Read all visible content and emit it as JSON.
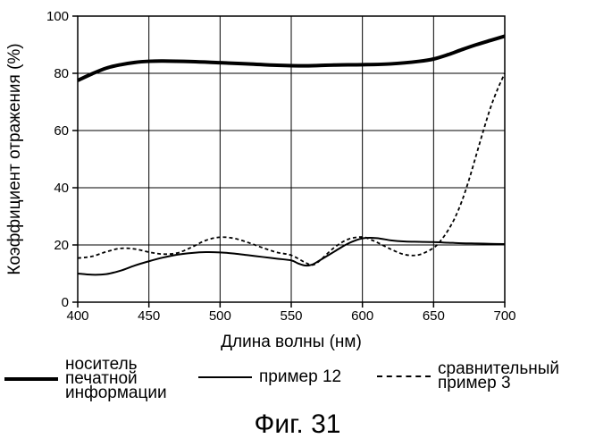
{
  "chart_data": {
    "type": "line",
    "xlabel": "Длина волны (нм)",
    "ylabel": "Коэффициент отражения (%)",
    "xlim": [
      400,
      700
    ],
    "ylim": [
      0,
      100
    ],
    "xticks": [
      400,
      450,
      500,
      550,
      600,
      650,
      700
    ],
    "yticks": [
      0,
      20,
      40,
      60,
      80,
      100
    ],
    "grid": true,
    "legend_position": "bottom",
    "series": [
      {
        "name": "носитель печатной информации",
        "style": "thick-solid",
        "x": [
          400,
          410,
          420,
          430,
          440,
          450,
          460,
          480,
          500,
          520,
          540,
          560,
          580,
          600,
          620,
          640,
          650,
          660,
          670,
          680,
          690,
          700
        ],
        "y": [
          77.5,
          79.8,
          81.8,
          83.0,
          83.8,
          84.2,
          84.3,
          84.1,
          83.7,
          83.3,
          82.8,
          82.6,
          82.9,
          83.0,
          83.3,
          84.2,
          85.0,
          86.5,
          88.3,
          90.0,
          91.5,
          93.0
        ]
      },
      {
        "name": "пример 12",
        "style": "thin-solid",
        "x": [
          400,
          410,
          420,
          430,
          440,
          450,
          460,
          470,
          480,
          490,
          500,
          510,
          520,
          530,
          540,
          550,
          555,
          560,
          565,
          570,
          580,
          590,
          600,
          610,
          620,
          630,
          640,
          650,
          660,
          670,
          680,
          690,
          700
        ],
        "y": [
          10.0,
          9.6,
          9.8,
          11.0,
          12.8,
          14.3,
          15.6,
          16.6,
          17.2,
          17.5,
          17.4,
          17.0,
          16.4,
          15.8,
          15.2,
          14.6,
          13.5,
          12.8,
          13.2,
          14.6,
          17.6,
          20.5,
          22.3,
          22.4,
          21.6,
          21.2,
          21.1,
          21.0,
          20.8,
          20.6,
          20.5,
          20.4,
          20.3
        ]
      },
      {
        "name": "сравнительный пример 3",
        "style": "dashed",
        "x": [
          400,
          410,
          420,
          430,
          440,
          450,
          460,
          470,
          480,
          490,
          500,
          510,
          520,
          530,
          540,
          550,
          560,
          565,
          570,
          580,
          590,
          600,
          605,
          610,
          620,
          630,
          640,
          650,
          655,
          660,
          665,
          670,
          675,
          680,
          685,
          690,
          695,
          700
        ],
        "y": [
          15.4,
          16.0,
          17.6,
          18.8,
          18.6,
          17.5,
          16.8,
          17.2,
          19.2,
          21.6,
          22.7,
          22.3,
          20.8,
          19.0,
          17.4,
          16.4,
          13.8,
          13.0,
          14.5,
          19.0,
          22.0,
          22.8,
          22.0,
          21.0,
          18.5,
          16.6,
          16.6,
          19.0,
          21.5,
          25.0,
          29.5,
          35.5,
          43.0,
          51.5,
          60.0,
          68.0,
          74.5,
          80.0
        ]
      }
    ]
  },
  "legend": {
    "items": [
      {
        "label": "носитель\nпечатной\nинформации"
      },
      {
        "label": "пример 12"
      },
      {
        "label": "сравнительный\nпример 3"
      }
    ]
  },
  "caption": "Фиг. 31"
}
